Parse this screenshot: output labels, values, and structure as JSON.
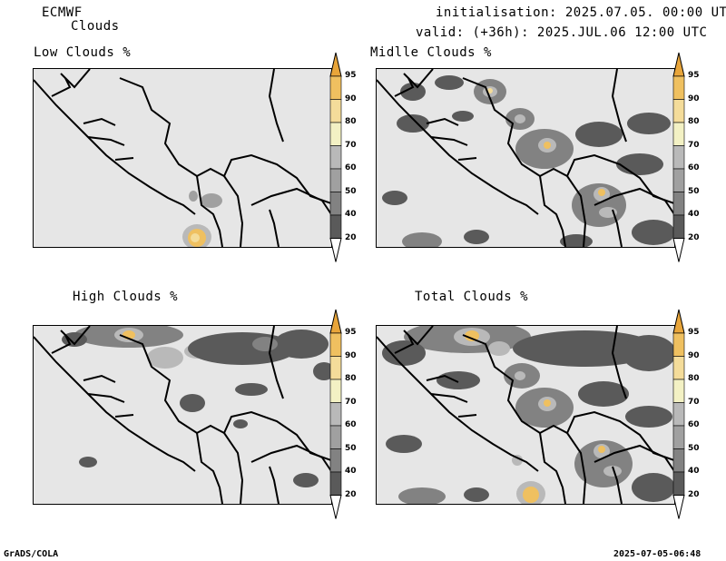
{
  "header": {
    "model": "ECMWF",
    "product": "Clouds",
    "initialisation": "initialisation: 2025.07.05. 00:00 UTC",
    "valid": "valid: (+36h): 2025.JUL.06 12:00 UTC"
  },
  "panels": [
    {
      "title": "Low Clouds %"
    },
    {
      "title": "Midlle Clouds %"
    },
    {
      "title": "High Clouds %"
    },
    {
      "title": "Total Clouds %"
    }
  ],
  "colorbar": {
    "ticks": [
      "95",
      "90",
      "80",
      "70",
      "60",
      "50",
      "40",
      "20"
    ],
    "colors": {
      "c20": "#5a5a5a",
      "c40": "#828282",
      "c50": "#a0a0a0",
      "c60": "#b9b9b9",
      "c70": "#f3f1c4",
      "c80": "#f4dc9a",
      "c90": "#efc060",
      "c95": "#e8a53a"
    }
  },
  "footer": {
    "left": "GrADS/COLA",
    "right": "2025-07-05-06:48"
  }
}
